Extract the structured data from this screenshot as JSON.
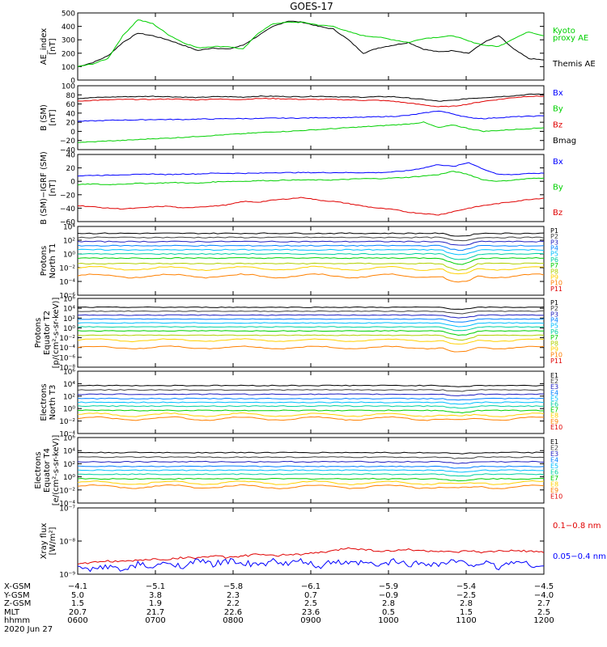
{
  "title": "GOES-17",
  "panels": [
    {
      "ylabel": [
        "AE_index",
        "[nT]"
      ],
      "yscale": "linear",
      "ylim": [
        0,
        500
      ],
      "yticks": [
        "0",
        "100",
        "200",
        "300",
        "400",
        "500"
      ],
      "legend": [
        {
          "text": "Kyoto",
          "color": "#00d000"
        },
        {
          "text": "proxy AE",
          "color": "#00d000"
        },
        {
          "text": "Themis AE",
          "color": "#000000"
        }
      ],
      "series": [
        {
          "name": "Themis AE",
          "color": "#000000",
          "values": [
            100,
            130,
            180,
            280,
            350,
            330,
            300,
            260,
            220,
            240,
            230,
            260,
            330,
            400,
            440,
            430,
            400,
            380,
            300,
            200,
            240,
            260,
            280,
            230,
            210,
            220,
            200,
            280,
            330,
            230,
            160,
            150
          ]
        },
        {
          "name": "Kyoto proxy AE",
          "color": "#00d000",
          "values": [
            100,
            120,
            160,
            330,
            450,
            420,
            340,
            280,
            240,
            250,
            250,
            230,
            350,
            420,
            430,
            430,
            410,
            400,
            360,
            330,
            320,
            300,
            280,
            310,
            320,
            330,
            290,
            260,
            250,
            310,
            360,
            330
          ]
        }
      ]
    },
    {
      "ylabel": [
        "B (SM)",
        "[nT]"
      ],
      "yscale": "linear",
      "ylim": [
        -40,
        100
      ],
      "yticks": [
        "−40",
        "−20",
        "0",
        "20",
        "40",
        "60",
        "80",
        "100"
      ],
      "legend": [
        {
          "text": "Bx",
          "color": "#0000ff"
        },
        {
          "text": "By",
          "color": "#00d000"
        },
        {
          "text": "Bz",
          "color": "#e00000"
        },
        {
          "text": "Bmag",
          "color": "#000000"
        }
      ],
      "series": [
        {
          "name": "Bmag",
          "color": "#000000",
          "values": [
            72,
            74,
            75,
            76,
            76,
            77,
            76,
            75,
            74,
            76,
            76,
            75,
            77,
            77,
            76,
            76,
            77,
            76,
            75,
            75,
            76,
            76,
            73,
            70,
            66,
            68,
            72,
            74,
            76,
            78,
            81,
            82
          ]
        },
        {
          "name": "Bz",
          "color": "#e00000",
          "values": [
            66,
            68,
            69,
            70,
            70,
            70,
            71,
            70,
            69,
            71,
            70,
            70,
            72,
            72,
            71,
            70,
            70,
            70,
            69,
            68,
            68,
            66,
            62,
            58,
            54,
            55,
            60,
            66,
            70,
            74,
            77,
            77
          ]
        },
        {
          "name": "Bx",
          "color": "#0000ff",
          "values": [
            22,
            23,
            24,
            25,
            25,
            26,
            26,
            26,
            27,
            27,
            28,
            28,
            28,
            29,
            29,
            29,
            30,
            30,
            30,
            31,
            32,
            33,
            35,
            40,
            45,
            38,
            30,
            28,
            30,
            32,
            33,
            34
          ]
        },
        {
          "name": "By",
          "color": "#00d000",
          "values": [
            -24,
            -23,
            -21,
            -20,
            -18,
            -16,
            -15,
            -13,
            -11,
            -9,
            -7,
            -5,
            -3,
            -1,
            0,
            2,
            4,
            6,
            8,
            10,
            12,
            14,
            16,
            20,
            8,
            14,
            6,
            0,
            2,
            4,
            6,
            8
          ]
        }
      ]
    },
    {
      "ylabel": [
        "B (SM)−IGRF (SM)",
        "[nT]"
      ],
      "yscale": "linear",
      "ylim": [
        -60,
        40
      ],
      "yticks": [
        "−60",
        "−40",
        "−20",
        "0",
        "20",
        "40"
      ],
      "legend": [
        {
          "text": "Bx",
          "color": "#0000ff"
        },
        {
          "text": "By",
          "color": "#00d000"
        },
        {
          "text": "Bz",
          "color": "#e00000"
        }
      ],
      "series": [
        {
          "name": "Bx",
          "color": "#0000ff",
          "values": [
            8,
            9,
            9,
            10,
            10,
            11,
            10,
            11,
            11,
            12,
            12,
            12,
            12,
            13,
            13,
            13,
            13,
            13,
            13,
            13,
            13,
            14,
            16,
            20,
            25,
            22,
            28,
            18,
            10,
            10,
            12,
            12
          ]
        },
        {
          "name": "By",
          "color": "#00d000",
          "values": [
            -5,
            -4,
            -5,
            -4,
            -3,
            -3,
            -2,
            -2,
            -3,
            -1,
            0,
            0,
            1,
            1,
            2,
            2,
            2,
            2,
            3,
            4,
            4,
            5,
            6,
            8,
            10,
            15,
            10,
            2,
            0,
            2,
            4,
            5
          ]
        },
        {
          "name": "Bz",
          "color": "#e00000",
          "values": [
            -36,
            -38,
            -40,
            -41,
            -40,
            -38,
            -37,
            -40,
            -38,
            -37,
            -35,
            -30,
            -31,
            -28,
            -26,
            -24,
            -28,
            -30,
            -33,
            -37,
            -40,
            -42,
            -46,
            -48,
            -50,
            -45,
            -40,
            -36,
            -33,
            -30,
            -27,
            -25
          ]
        }
      ]
    },
    {
      "ylabel": [
        "Protons",
        "North T1"
      ],
      "yscale": "log",
      "ylim": [
        -6,
        4
      ],
      "yticks": [
        "10⁻⁶",
        "10⁻⁴",
        "10⁻²",
        "10⁰",
        "10²",
        "10⁴"
      ],
      "legend": [
        {
          "text": "P1",
          "color": "#000000"
        },
        {
          "text": "P2",
          "color": "#404040"
        },
        {
          "text": "P3",
          "color": "#2020c0"
        },
        {
          "text": "P4",
          "color": "#0080ff"
        },
        {
          "text": "P5",
          "color": "#00c0ff"
        },
        {
          "text": "P6",
          "color": "#00d0a0"
        },
        {
          "text": "P7",
          "color": "#00d000"
        },
        {
          "text": "P8",
          "color": "#b0d000"
        },
        {
          "text": "P9",
          "color": "#ffd000"
        },
        {
          "text": "P10",
          "color": "#ff8000"
        },
        {
          "text": "P11",
          "color": "#e00000"
        }
      ],
      "levels": [
        3.0,
        2.4,
        1.8,
        1.2,
        0.6,
        0.0,
        -0.6,
        -1.4,
        -2.1,
        -3.2
      ],
      "dip": 0.4
    },
    {
      "ylabel": [
        "Protons",
        "Equator T2",
        "[p/(cm²-s-sr-keV)]"
      ],
      "yscale": "log",
      "ylim": [
        -8,
        6
      ],
      "yticks": [
        "10⁻⁸",
        "10⁻⁶",
        "10⁻⁴",
        "10⁻²",
        "10⁰",
        "10²",
        "10⁴",
        "10⁶"
      ],
      "legend": [
        {
          "text": "P1",
          "color": "#000000"
        },
        {
          "text": "P2",
          "color": "#404040"
        },
        {
          "text": "P3",
          "color": "#2020c0"
        },
        {
          "text": "P4",
          "color": "#0080ff"
        },
        {
          "text": "P5",
          "color": "#00c0ff"
        },
        {
          "text": "P6",
          "color": "#00d0a0"
        },
        {
          "text": "P7",
          "color": "#00d000"
        },
        {
          "text": "P8",
          "color": "#b0d000"
        },
        {
          "text": "P9",
          "color": "#ffd000"
        },
        {
          "text": "P10",
          "color": "#ff8000"
        },
        {
          "text": "P11",
          "color": "#e00000"
        }
      ],
      "levels": [
        4.2,
        3.4,
        2.6,
        1.8,
        1.0,
        0.2,
        -0.6,
        -1.5,
        -2.5,
        -4.0
      ],
      "dip": 0.4
    },
    {
      "ylabel": [
        "Electrons",
        "North T3"
      ],
      "yscale": "log",
      "ylim": [
        -4,
        6
      ],
      "yticks": [
        "10⁻⁴",
        "10⁻²",
        "10⁰",
        "10²",
        "10⁴",
        "10⁶"
      ],
      "legend": [
        {
          "text": "E1",
          "color": "#000000"
        },
        {
          "text": "E2",
          "color": "#404040"
        },
        {
          "text": "E3",
          "color": "#2020c0"
        },
        {
          "text": "E4",
          "color": "#0080ff"
        },
        {
          "text": "E5",
          "color": "#00c0ff"
        },
        {
          "text": "E6",
          "color": "#00d0a0"
        },
        {
          "text": "E7",
          "color": "#00d000"
        },
        {
          "text": "E8",
          "color": "#ffd000"
        },
        {
          "text": "E9",
          "color": "#ff8000"
        },
        {
          "text": "E10",
          "color": "#e00000"
        }
      ],
      "levels": [
        3.7,
        3.0,
        2.3,
        1.6,
        1.0,
        0.4,
        -0.3,
        -1.0,
        -1.6
      ],
      "dip": 0.15
    },
    {
      "ylabel": [
        "Electrons",
        "Equator T4",
        "[e/(cm²-s-sr-keV)]"
      ],
      "yscale": "log",
      "ylim": [
        -4,
        6
      ],
      "yticks": [
        "10⁻⁴",
        "10⁻²",
        "10⁰",
        "10²",
        "10⁴",
        "10⁶"
      ],
      "legend": [
        {
          "text": "E1",
          "color": "#000000"
        },
        {
          "text": "E2",
          "color": "#404040"
        },
        {
          "text": "E3",
          "color": "#2020c0"
        },
        {
          "text": "E4",
          "color": "#0080ff"
        },
        {
          "text": "E5",
          "color": "#00c0ff"
        },
        {
          "text": "E6",
          "color": "#00d0a0"
        },
        {
          "text": "E7",
          "color": "#00d000"
        },
        {
          "text": "E8",
          "color": "#ffd000"
        },
        {
          "text": "E9",
          "color": "#ff8000"
        },
        {
          "text": "E10",
          "color": "#e00000"
        }
      ],
      "levels": [
        3.7,
        3.0,
        2.3,
        1.6,
        1.0,
        0.4,
        -0.3,
        -0.9,
        -1.5
      ],
      "dip": 0.15
    },
    {
      "ylabel": [
        "Xray flux",
        "[W/m²]"
      ],
      "yscale": "log",
      "ylim": [
        -9,
        -7
      ],
      "yticks": [
        "10⁻⁹",
        "10⁻⁸",
        "10⁻⁷"
      ],
      "legend": [
        {
          "text": "0.1−0.8 nm",
          "color": "#e00000"
        },
        {
          "text": "0.05−0.4 nm",
          "color": "#0000ff"
        }
      ],
      "series": [
        {
          "name": "0.1−0.8 nm",
          "color": "#e00000",
          "values": [
            -8.7,
            -8.65,
            -8.6,
            -8.62,
            -8.58,
            -8.55,
            -8.55,
            -8.5,
            -8.5,
            -8.45,
            -8.5,
            -8.45,
            -8.4,
            -8.45,
            -8.4,
            -8.4,
            -8.35,
            -8.3,
            -8.2,
            -8.25,
            -8.3,
            -8.3,
            -8.25,
            -8.3,
            -8.3,
            -8.35,
            -8.3,
            -8.35,
            -8.3,
            -8.3,
            -8.3,
            -8.35
          ]
        },
        {
          "name": "0.05−0.4 nm",
          "color": "#0000ff",
          "values": [
            -8.8,
            -8.85,
            -8.75,
            -8.9,
            -8.7,
            -8.8,
            -8.65,
            -8.75,
            -8.6,
            -8.7,
            -8.6,
            -8.65,
            -8.75,
            -8.6,
            -8.7,
            -8.6,
            -8.8,
            -8.6,
            -8.7,
            -8.65,
            -8.75,
            -8.6,
            -8.7,
            -8.65,
            -8.7,
            -8.6,
            -8.7,
            -8.65,
            -8.8,
            -8.6,
            -8.7,
            -8.75
          ]
        }
      ]
    }
  ],
  "footer": {
    "row_labels": [
      "X-GSM",
      "Y-GSM",
      "Z-GSM",
      "MLT",
      "hhmm"
    ],
    "date": "2020 Jun 27",
    "columns": [
      [
        "−4.1",
        "5.0",
        "1.5",
        "20.7",
        "0600"
      ],
      [
        "−5.1",
        "3.8",
        "1.9",
        "21.7",
        "0700"
      ],
      [
        "−5.8",
        "2.3",
        "2.2",
        "22.6",
        "0800"
      ],
      [
        "−6.1",
        "0.7",
        "2.5",
        "23.6",
        "0900"
      ],
      [
        "−5.9",
        "−0.9",
        "2.8",
        "0.5",
        "1000"
      ],
      [
        "−5.4",
        "−2.5",
        "2.8",
        "1.5",
        "1100"
      ],
      [
        "−4.5",
        "−4.0",
        "2.7",
        "2.5",
        "1200"
      ]
    ]
  },
  "chart_data": {
    "type": "line",
    "title": "GOES-17",
    "x_range": [
      "0600",
      "1200"
    ],
    "x_ticks": [
      "0600",
      "0700",
      "0800",
      "0900",
      "1000",
      "1100",
      "1200"
    ],
    "panel_count": 8
  }
}
